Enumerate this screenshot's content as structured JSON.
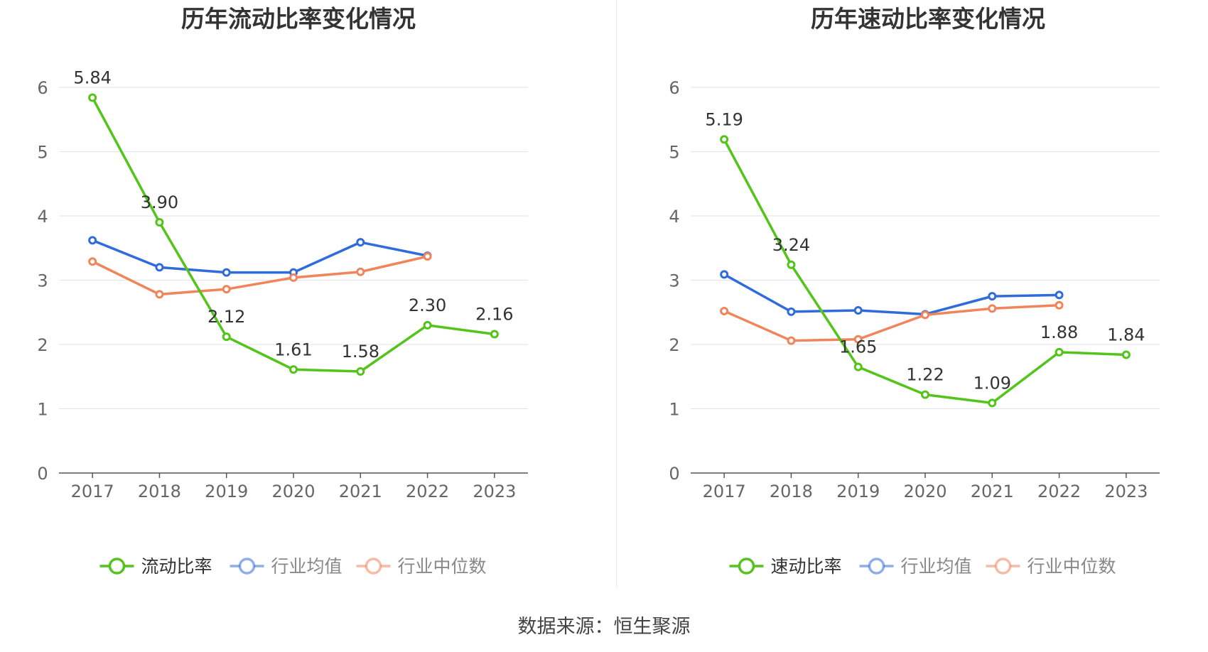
{
  "footer": {
    "source_label": "数据来源：恒生聚源"
  },
  "chart_data": [
    {
      "type": "line",
      "title": "历年流动比率变化情况",
      "categories": [
        "2017",
        "2018",
        "2019",
        "2020",
        "2021",
        "2022",
        "2023"
      ],
      "ylim": [
        0,
        6
      ],
      "yticks": [
        0,
        1,
        2,
        3,
        4,
        5,
        6
      ],
      "grid": true,
      "legend_position": "bottom-center",
      "series": [
        {
          "name": "流动比率",
          "color": "#52c41a",
          "values": [
            5.84,
            3.9,
            2.12,
            1.61,
            1.58,
            2.3,
            2.16
          ],
          "labels": [
            "5.84",
            "3.90",
            "2.12",
            "1.61",
            "1.58",
            "2.30",
            "2.16"
          ]
        },
        {
          "name": "行业均值",
          "color": "#2f6bdb",
          "values": [
            3.62,
            3.2,
            3.12,
            3.12,
            3.59,
            3.38,
            null
          ]
        },
        {
          "name": "行业中位数",
          "color": "#f0845a",
          "values": [
            3.29,
            2.78,
            2.86,
            3.04,
            3.13,
            3.37,
            null
          ]
        }
      ]
    },
    {
      "type": "line",
      "title": "历年速动比率变化情况",
      "categories": [
        "2017",
        "2018",
        "2019",
        "2020",
        "2021",
        "2022",
        "2023"
      ],
      "ylim": [
        0,
        6
      ],
      "yticks": [
        0,
        1,
        2,
        3,
        4,
        5,
        6
      ],
      "grid": true,
      "legend_position": "bottom-center",
      "series": [
        {
          "name": "速动比率",
          "color": "#52c41a",
          "values": [
            5.19,
            3.24,
            1.65,
            1.22,
            1.09,
            1.88,
            1.84
          ],
          "labels": [
            "5.19",
            "3.24",
            "1.65",
            "1.22",
            "1.09",
            "1.88",
            "1.84"
          ]
        },
        {
          "name": "行业均值",
          "color": "#2f6bdb",
          "values": [
            3.09,
            2.51,
            2.53,
            2.47,
            2.75,
            2.77,
            null
          ]
        },
        {
          "name": "行业中位数",
          "color": "#f0845a",
          "values": [
            2.52,
            2.06,
            2.08,
            2.46,
            2.56,
            2.61,
            null
          ]
        }
      ]
    }
  ]
}
